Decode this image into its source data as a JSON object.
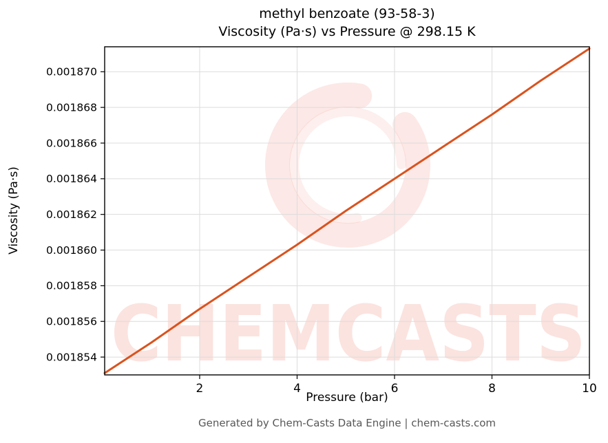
{
  "figure": {
    "title_line1": "methyl benzoate (93-58-3)",
    "title_line2": "Viscosity (Pa·s) vs Pressure @ 298.15 K",
    "footer": "Generated by Chem-Casts Data Engine | chem-casts.com",
    "watermark": {
      "text": "CHEMCASTS",
      "color": "#e8503a"
    }
  },
  "chart_data": {
    "type": "line",
    "title": "methyl benzoate (93-58-3) — Viscosity (Pa·s) vs Pressure @ 298.15 K",
    "xlabel": "Pressure (bar)",
    "ylabel": "Viscosity (Pa·s)",
    "xlim": [
      0.05,
      10
    ],
    "ylim": [
      0.001853,
      0.0018714
    ],
    "grid": true,
    "legend": "none",
    "line_color": "#d9531e",
    "grid_color": "#dcdcdc",
    "x_ticks": [
      2,
      4,
      6,
      8,
      10
    ],
    "x_tick_labels": [
      "2",
      "4",
      "6",
      "8",
      "10"
    ],
    "y_ticks": [
      0.001854,
      0.001856,
      0.001858,
      0.00186,
      0.001862,
      0.001864,
      0.001866,
      0.001868,
      0.00187
    ],
    "y_tick_labels": [
      "0.001854",
      "0.001856",
      "0.001858",
      "0.001860",
      "0.001862",
      "0.001864",
      "0.001866",
      "0.001868",
      "0.001870"
    ],
    "series": [
      {
        "name": "viscosity",
        "x": [
          0.05,
          1,
          2,
          3,
          4,
          5,
          6,
          7,
          8,
          9,
          10
        ],
        "y": [
          0.0018531,
          0.0018548,
          0.0018567,
          0.0018585,
          0.0018603,
          0.0018622,
          0.001864,
          0.0018658,
          0.0018676,
          0.0018695,
          0.0018713
        ]
      }
    ]
  }
}
